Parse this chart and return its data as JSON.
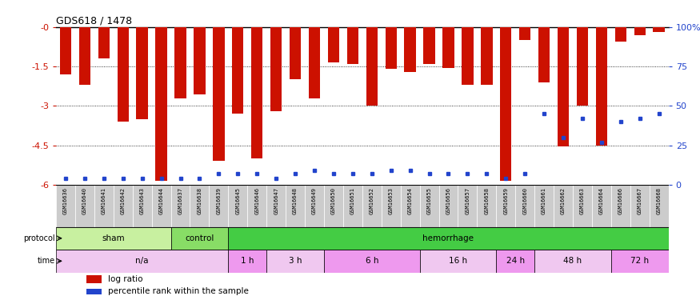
{
  "title": "GDS618 / 1478",
  "samples": [
    "GSM16636",
    "GSM16640",
    "GSM16641",
    "GSM16642",
    "GSM16643",
    "GSM16644",
    "GSM16637",
    "GSM16638",
    "GSM16639",
    "GSM16645",
    "GSM16646",
    "GSM16647",
    "GSM16648",
    "GSM16649",
    "GSM16650",
    "GSM16651",
    "GSM16652",
    "GSM16653",
    "GSM16654",
    "GSM16655",
    "GSM16656",
    "GSM16657",
    "GSM16658",
    "GSM16659",
    "GSM16660",
    "GSM16661",
    "GSM16662",
    "GSM16663",
    "GSM16664",
    "GSM16666",
    "GSM16667",
    "GSM16668"
  ],
  "log_ratio": [
    -1.8,
    -2.2,
    -1.2,
    -3.6,
    -3.5,
    -5.85,
    -2.7,
    -2.55,
    -5.1,
    -3.3,
    -5.0,
    -3.2,
    -2.0,
    -2.7,
    -1.35,
    -1.4,
    -3.0,
    -1.6,
    -1.7,
    -1.4,
    -1.55,
    -2.2,
    -2.2,
    -5.85,
    -0.5,
    -2.1,
    -4.55,
    -3.0,
    -4.5,
    -0.55,
    -0.3,
    -0.2
  ],
  "percentile": [
    4,
    4,
    4,
    4,
    4,
    4,
    4,
    4,
    7,
    7,
    7,
    4,
    7,
    9,
    7,
    7,
    7,
    9,
    9,
    7,
    7,
    7,
    7,
    4,
    7,
    45,
    30,
    42,
    27,
    40,
    42,
    45
  ],
  "ylim_left": [
    -6,
    0
  ],
  "ylim_right": [
    0,
    100
  ],
  "yticks_left": [
    0,
    -1.5,
    -3.0,
    -4.5,
    -6.0
  ],
  "yticks_left_labels": [
    "-0",
    "-1.5",
    "-3",
    "-4.5",
    "-6"
  ],
  "yticks_right": [
    0,
    25,
    50,
    75,
    100
  ],
  "yticks_right_labels": [
    "0",
    "25",
    "50",
    "75",
    "100%"
  ],
  "bar_color": "#cc1100",
  "dot_color": "#2244cc",
  "protocol_groups": [
    {
      "label": "sham",
      "start": 0,
      "end": 5,
      "color": "#c8f0a0"
    },
    {
      "label": "control",
      "start": 6,
      "end": 8,
      "color": "#88dd66"
    },
    {
      "label": "hemorrhage",
      "start": 9,
      "end": 31,
      "color": "#44cc44"
    }
  ],
  "time_groups": [
    {
      "label": "n/a",
      "start": 0,
      "end": 8,
      "color": "#f0c8f0"
    },
    {
      "label": "1 h",
      "start": 9,
      "end": 10,
      "color": "#ee99ee"
    },
    {
      "label": "3 h",
      "start": 11,
      "end": 13,
      "color": "#f0c8f0"
    },
    {
      "label": "6 h",
      "start": 14,
      "end": 18,
      "color": "#ee99ee"
    },
    {
      "label": "16 h",
      "start": 19,
      "end": 22,
      "color": "#f0c8f0"
    },
    {
      "label": "24 h",
      "start": 23,
      "end": 24,
      "color": "#ee99ee"
    },
    {
      "label": "48 h",
      "start": 25,
      "end": 28,
      "color": "#f0c8f0"
    },
    {
      "label": "72 h",
      "start": 29,
      "end": 31,
      "color": "#ee99ee"
    }
  ],
  "background_color": "#ffffff",
  "left_axis_color": "#cc1100",
  "right_axis_color": "#2244cc",
  "sample_box_color": "#cccccc"
}
